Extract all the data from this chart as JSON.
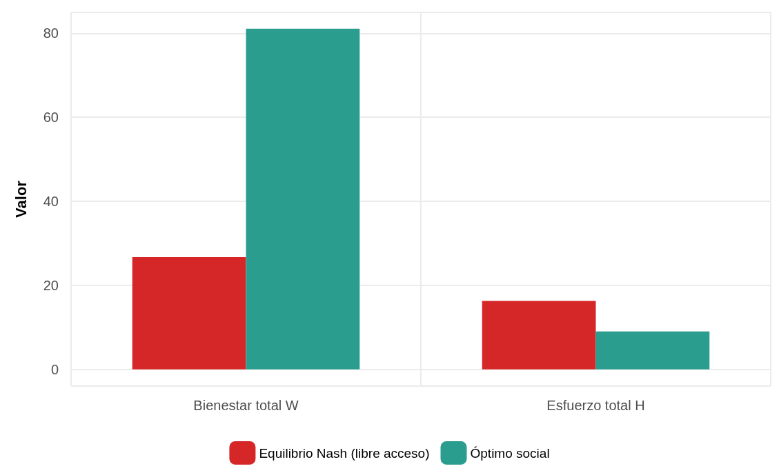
{
  "chart_data": {
    "type": "bar",
    "ylabel": "Valor",
    "categories": [
      "Bienestar total W",
      "Esfuerzo total H"
    ],
    "series": [
      {
        "name": "Equilibrio Nash (libre acceso)",
        "color": "#d62728",
        "values": [
          26.7,
          16.3
        ]
      },
      {
        "name": "Óptimo social",
        "color": "#2a9d8f",
        "values": [
          81.1,
          9.0
        ]
      }
    ],
    "ylim": [
      -4,
      85
    ],
    "yticks": [
      0,
      20,
      40,
      60,
      80
    ],
    "grid": true,
    "legend": "bottom"
  }
}
